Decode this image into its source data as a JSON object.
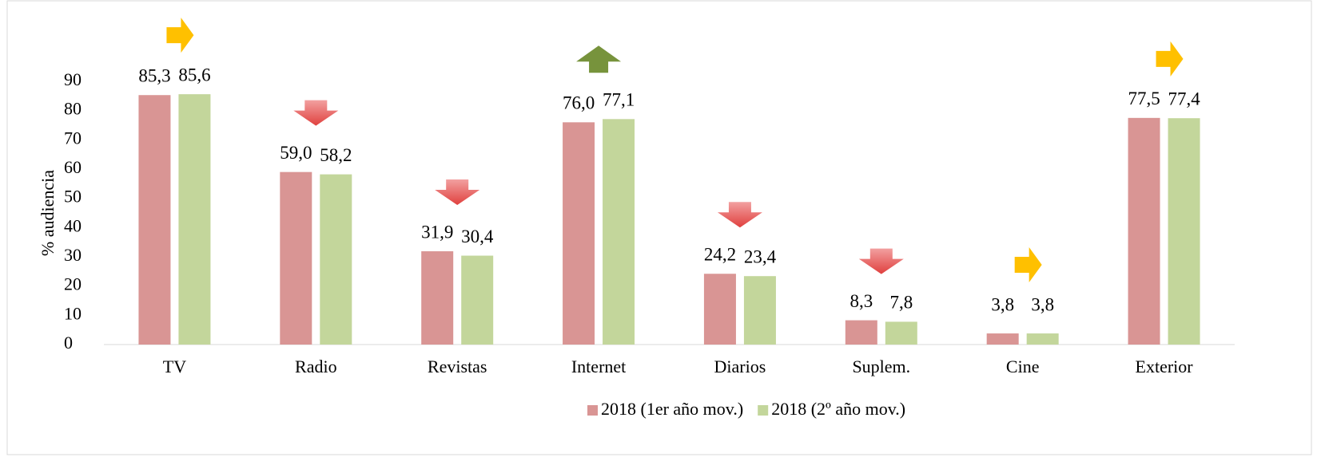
{
  "chart_data": {
    "type": "bar",
    "categories": [
      "TV",
      "Radio",
      "Revistas",
      "Internet",
      "Diarios",
      "Suplem.",
      "Cine",
      "Exterior"
    ],
    "y_label": "% audiencia",
    "series": [
      {
        "name": "2018 (1er año mov.)",
        "color": "#d99594",
        "label_color": "#c0504d",
        "values": [
          85.3,
          59.0,
          31.9,
          76.0,
          24.2,
          8.3,
          3.8,
          77.5
        ],
        "value_labels": [
          "85,3",
          "59,0",
          "31,9",
          "76,0",
          "24,2",
          "8,3",
          "3,8",
          "77,5"
        ]
      },
      {
        "name": "2018 (2º año mov.)",
        "color": "#c3d69b",
        "label_color": "#4f6228",
        "values": [
          85.6,
          58.2,
          30.4,
          77.1,
          23.4,
          7.8,
          3.8,
          77.4
        ],
        "value_labels": [
          "85,6",
          "58,2",
          "30,4",
          "77,1",
          "23,4",
          "7,8",
          "3,8",
          "77,4"
        ]
      }
    ],
    "ylim": [
      0,
      90
    ],
    "yticks": [
      0,
      10,
      20,
      30,
      40,
      50,
      60,
      70,
      80,
      90
    ],
    "legend": "bottom"
  }
}
